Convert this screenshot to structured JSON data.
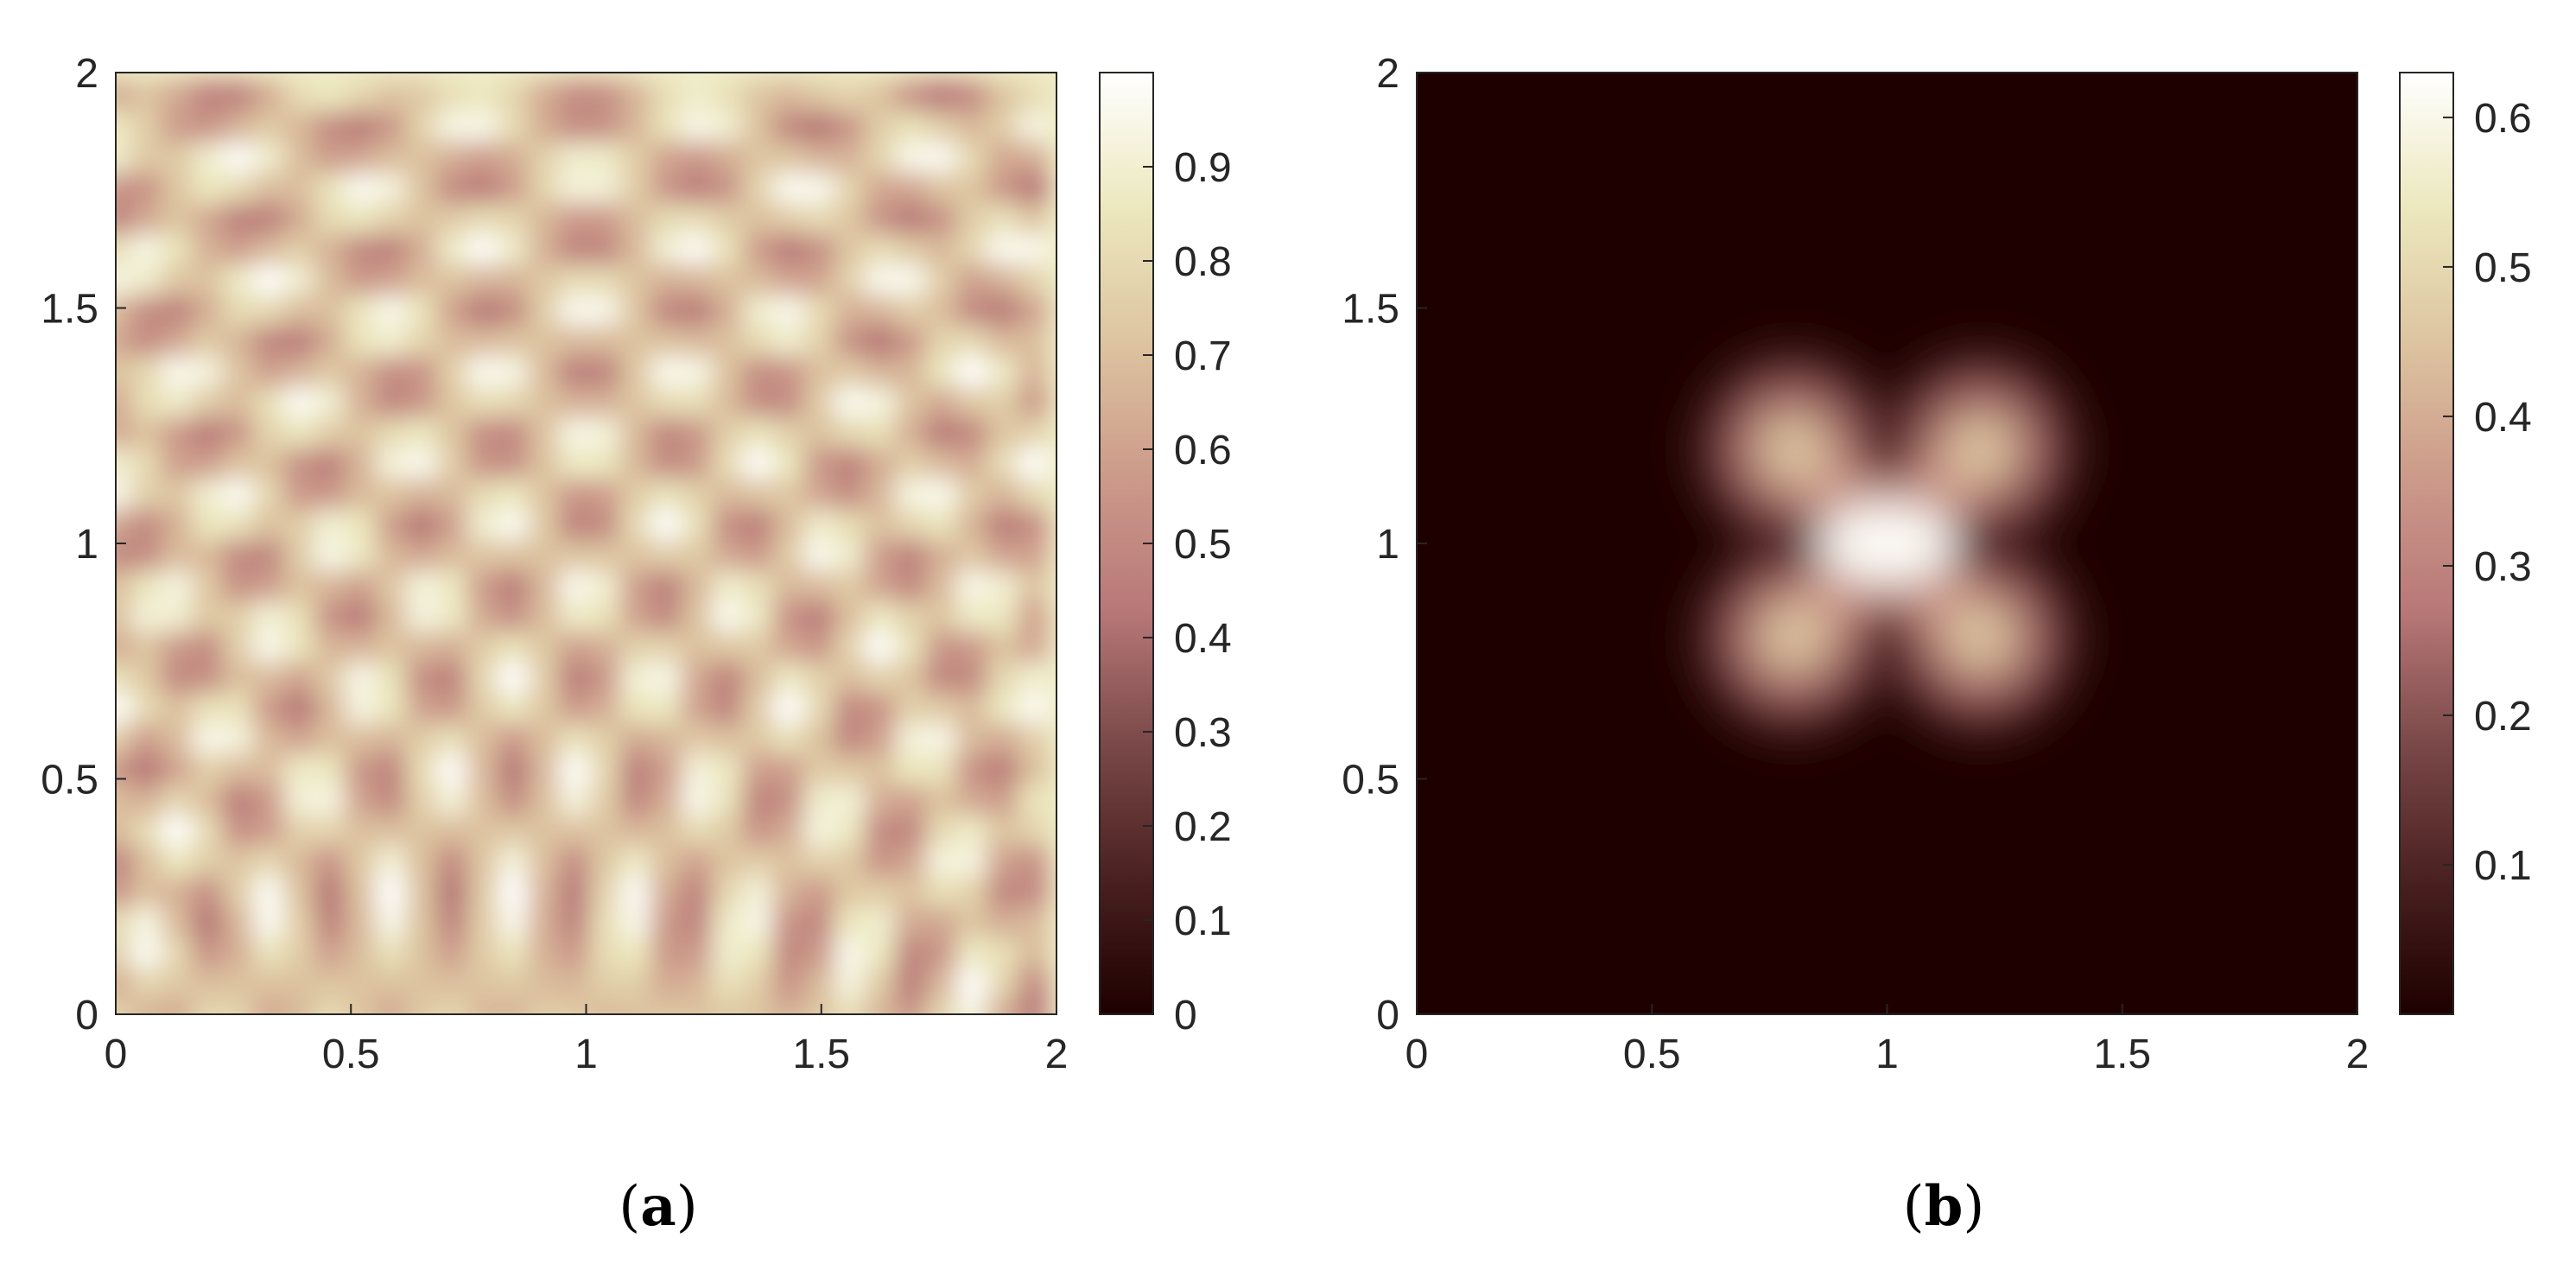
{
  "chart_data": [
    {
      "type": "heatmap",
      "panel_label": {
        "open": "(",
        "letter": "a",
        "close": ")"
      },
      "xlim": [
        0,
        2
      ],
      "ylim": [
        0,
        2
      ],
      "xticks": [
        "0",
        "0.5",
        "1",
        "1.5",
        "2"
      ],
      "yticks": [
        "0",
        "0.5",
        "1",
        "1.5",
        "2"
      ],
      "colorbar": {
        "range": [
          0,
          1
        ],
        "ticks": [
          "0",
          "0.1",
          "0.2",
          "0.3",
          "0.4",
          "0.5",
          "0.6",
          "0.7",
          "0.8",
          "0.9"
        ]
      },
      "grid": false
    },
    {
      "type": "heatmap",
      "panel_label": {
        "open": "(",
        "letter": "b",
        "close": ")"
      },
      "xlim": [
        0,
        2
      ],
      "ylim": [
        0,
        2
      ],
      "xticks": [
        "0",
        "0.5",
        "1",
        "1.5",
        "2"
      ],
      "yticks": [
        "0",
        "0.5",
        "1",
        "1.5",
        "2"
      ],
      "colorbar": {
        "range": [
          0,
          0.63
        ],
        "ticks": [
          "0.1",
          "0.2",
          "0.3",
          "0.4",
          "0.5",
          "0.6"
        ]
      },
      "peaks": [
        {
          "x": 1.0,
          "y": 1.0,
          "value": 0.62
        },
        {
          "x": 0.8,
          "y": 1.2,
          "value": 0.45
        },
        {
          "x": 1.2,
          "y": 1.2,
          "value": 0.45
        },
        {
          "x": 0.8,
          "y": 0.8,
          "value": 0.45
        },
        {
          "x": 1.2,
          "y": 0.8,
          "value": 0.45
        }
      ],
      "grid": false
    }
  ],
  "colors": {
    "colormap_stops": [
      "#1e0000",
      "#4a2020",
      "#7a4848",
      "#b87878",
      "#cc9a8a",
      "#ddc4a0",
      "#ece8be",
      "#ffffff"
    ],
    "axis_color": "#262626"
  }
}
